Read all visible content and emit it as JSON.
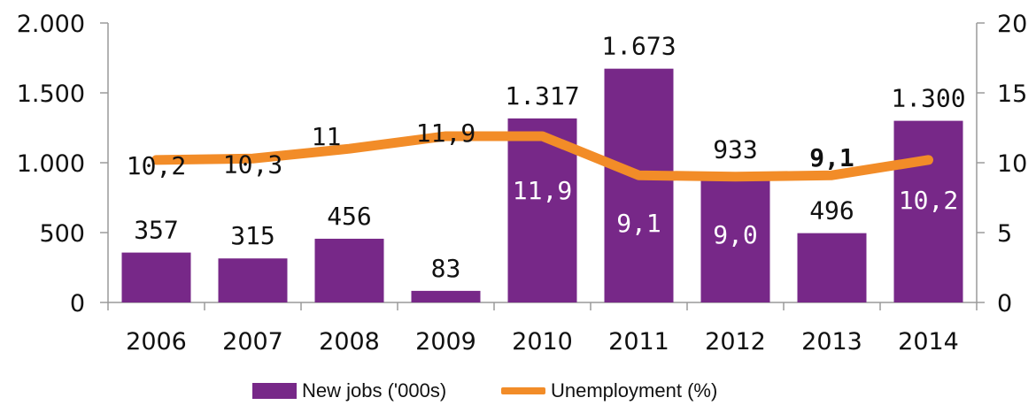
{
  "chart_data": {
    "type": "bar",
    "categories": [
      "2006",
      "2007",
      "2008",
      "2009",
      "2010",
      "2011",
      "2012",
      "2013",
      "2014"
    ],
    "series": [
      {
        "name": "New jobs ('000s)",
        "type": "bar",
        "axis": "left",
        "values": [
          357,
          315,
          456,
          83,
          1317,
          1673,
          933,
          496,
          1300
        ],
        "labels": [
          "357",
          "315",
          "456",
          "83",
          "1.317",
          "1.673",
          "933",
          "496",
          "1.300"
        ],
        "color": "#772888"
      },
      {
        "name": "Unemployment (%)",
        "type": "line",
        "axis": "right",
        "values": [
          10.2,
          10.3,
          11,
          11.9,
          11.9,
          9.1,
          9.0,
          9.1,
          10.2
        ],
        "labels": [
          "10,2",
          "10,3",
          "11",
          "11,9",
          "11,9",
          "9,1",
          "9,0",
          "9,1",
          "10,2"
        ],
        "color": "#F28C28"
      }
    ],
    "y_left": {
      "ylim": [
        0,
        2000
      ],
      "ticks": [
        0,
        500,
        1000,
        1500,
        2000
      ],
      "tick_labels": [
        "0",
        "500",
        "1.000",
        "1.500",
        "2.000"
      ]
    },
    "y_right": {
      "ylim": [
        0,
        20
      ],
      "ticks": [
        0,
        5,
        10,
        15,
        20
      ],
      "tick_labels": [
        "0",
        "5",
        "10",
        "15",
        "20"
      ]
    },
    "title": "",
    "xlabel": "",
    "legend_position": "bottom",
    "grid": false
  }
}
